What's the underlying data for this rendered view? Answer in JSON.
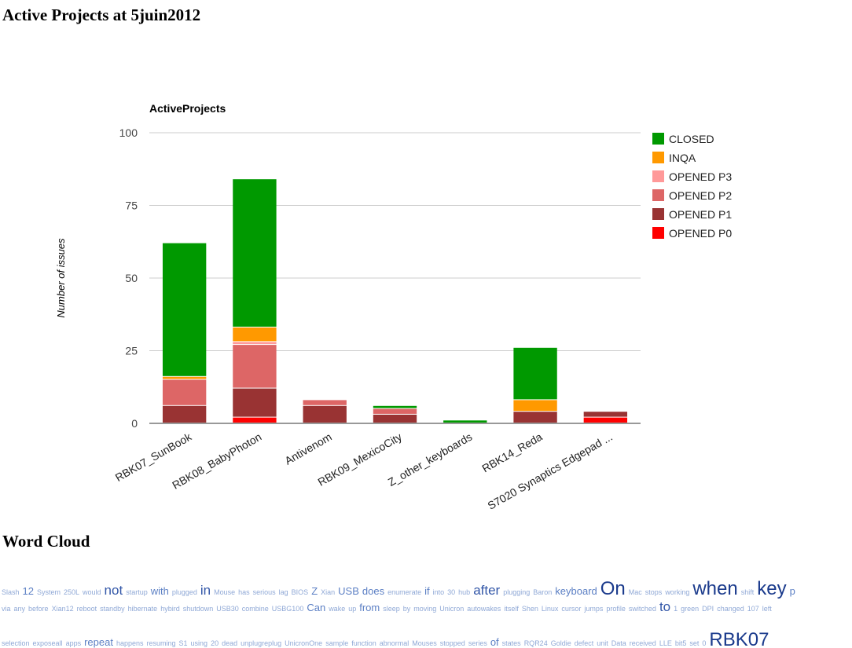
{
  "page": {
    "title": "Active Projects at 5juin2012"
  },
  "chart_data": {
    "type": "bar",
    "stacked": true,
    "title": "ActiveProjects",
    "xlabel": "",
    "ylabel": "Number of issues",
    "ylim": [
      0,
      100
    ],
    "yticks": [
      0,
      25,
      50,
      75,
      100
    ],
    "grid": true,
    "legend_position": "right",
    "categories": [
      "RBK07_SunBook",
      "RBK08_BabyPhoton",
      "Antivenom",
      "RBK09_MexicoCity",
      "Z_other_keyboards",
      "RBK14_Reda",
      "S7020 Synaptics Edgepad ..."
    ],
    "series": [
      {
        "name": "OPENED P0",
        "color": "#ff0000",
        "values": [
          0,
          2,
          0,
          0,
          0,
          0,
          2
        ]
      },
      {
        "name": "OPENED P1",
        "color": "#993333",
        "values": [
          6,
          10,
          6,
          3,
          0,
          4,
          2
        ]
      },
      {
        "name": "OPENED P2",
        "color": "#dd6666",
        "values": [
          9,
          15,
          2,
          2,
          0,
          0,
          0
        ]
      },
      {
        "name": "OPENED P3",
        "color": "#ff9999",
        "values": [
          0,
          1,
          0,
          0,
          0,
          0,
          0
        ]
      },
      {
        "name": "INQA",
        "color": "#ff9900",
        "values": [
          1,
          5,
          0,
          0,
          0,
          4,
          0
        ]
      },
      {
        "name": "CLOSED",
        "color": "#009900",
        "values": [
          46,
          51,
          0,
          1,
          1,
          18,
          0
        ]
      }
    ],
    "legend_order": [
      "CLOSED",
      "INQA",
      "OPENED P3",
      "OPENED P2",
      "OPENED P1",
      "OPENED P0"
    ]
  },
  "word_cloud": {
    "heading": "Word Cloud",
    "lines": [
      [
        [
          "Slash",
          1
        ],
        [
          "12",
          2
        ],
        [
          "System",
          1
        ],
        [
          "250L",
          1
        ],
        [
          "would",
          1
        ],
        [
          "not",
          3
        ],
        [
          "startup",
          1
        ],
        [
          "with",
          2
        ],
        [
          "plugged",
          1
        ],
        [
          "in",
          3
        ],
        [
          "Mouse",
          1
        ],
        [
          "has",
          1
        ],
        [
          "serious",
          1
        ],
        [
          "lag",
          1
        ],
        [
          "BIOS",
          1
        ],
        [
          "Z",
          2
        ],
        [
          "Xian",
          1
        ],
        [
          "USB",
          2
        ],
        [
          "does",
          2
        ],
        [
          "enumerate",
          1
        ],
        [
          "if",
          2
        ],
        [
          "into",
          1
        ],
        [
          "30",
          1
        ],
        [
          "hub",
          1
        ],
        [
          "after",
          3
        ],
        [
          "plugging",
          1
        ],
        [
          "Baron",
          1
        ],
        [
          "keyboard",
          2
        ],
        [
          "On",
          4
        ],
        [
          "Mac",
          1
        ],
        [
          "stops",
          1
        ],
        [
          "working",
          1
        ],
        [
          "when",
          4
        ],
        [
          "shift",
          1
        ],
        [
          "key",
          4
        ],
        [
          "p",
          2
        ]
      ],
      [
        [
          "via",
          1
        ],
        [
          "any",
          1
        ],
        [
          "before",
          1
        ],
        [
          "Xian12",
          1
        ],
        [
          "reboot",
          1
        ],
        [
          "standby",
          1
        ],
        [
          "hibernate",
          1
        ],
        [
          "hybird",
          1
        ],
        [
          "shutdown",
          1
        ],
        [
          "USB30",
          1
        ],
        [
          "combine",
          1
        ],
        [
          "USBG100",
          1
        ],
        [
          "Can",
          2
        ],
        [
          "wake",
          1
        ],
        [
          "up",
          1
        ],
        [
          "from",
          2
        ],
        [
          "sleep",
          1
        ],
        [
          "by",
          1
        ],
        [
          "moving",
          1
        ],
        [
          "Unicron",
          1
        ],
        [
          "autowakes",
          1
        ],
        [
          "itself",
          1
        ],
        [
          "Shen",
          1
        ],
        [
          "Linux",
          1
        ],
        [
          "cursor",
          1
        ],
        [
          "jumps",
          1
        ],
        [
          "profile",
          1
        ],
        [
          "switched",
          1
        ],
        [
          "to",
          3
        ],
        [
          "1",
          1
        ],
        [
          "green",
          1
        ],
        [
          "DPI",
          1
        ],
        [
          "changed",
          1
        ],
        [
          "107",
          1
        ],
        [
          "left",
          1
        ]
      ],
      [
        [
          "selection",
          1
        ],
        [
          "exposeall",
          1
        ],
        [
          "apps",
          1
        ],
        [
          "repeat",
          2
        ],
        [
          "happens",
          1
        ],
        [
          "resuming",
          1
        ],
        [
          "S1",
          1
        ],
        [
          "using",
          1
        ],
        [
          "20",
          1
        ],
        [
          "dead",
          1
        ],
        [
          "unplugreplug",
          1
        ],
        [
          "UnicronOne",
          1
        ],
        [
          "sample",
          1
        ],
        [
          "function",
          1
        ],
        [
          "abnormal",
          1
        ],
        [
          "Mouses",
          1
        ],
        [
          "stopped",
          1
        ],
        [
          "series",
          1
        ],
        [
          "of",
          2
        ],
        [
          "states",
          1
        ],
        [
          "RQR24",
          1
        ],
        [
          "Goldie",
          1
        ],
        [
          "defect",
          1
        ],
        [
          "unit",
          1
        ],
        [
          "Data",
          1
        ],
        [
          "received",
          1
        ],
        [
          "LLE",
          1
        ],
        [
          "bit5",
          1
        ],
        [
          "set",
          1
        ],
        [
          "0",
          1
        ],
        [
          "RBK07",
          4
        ]
      ]
    ]
  }
}
